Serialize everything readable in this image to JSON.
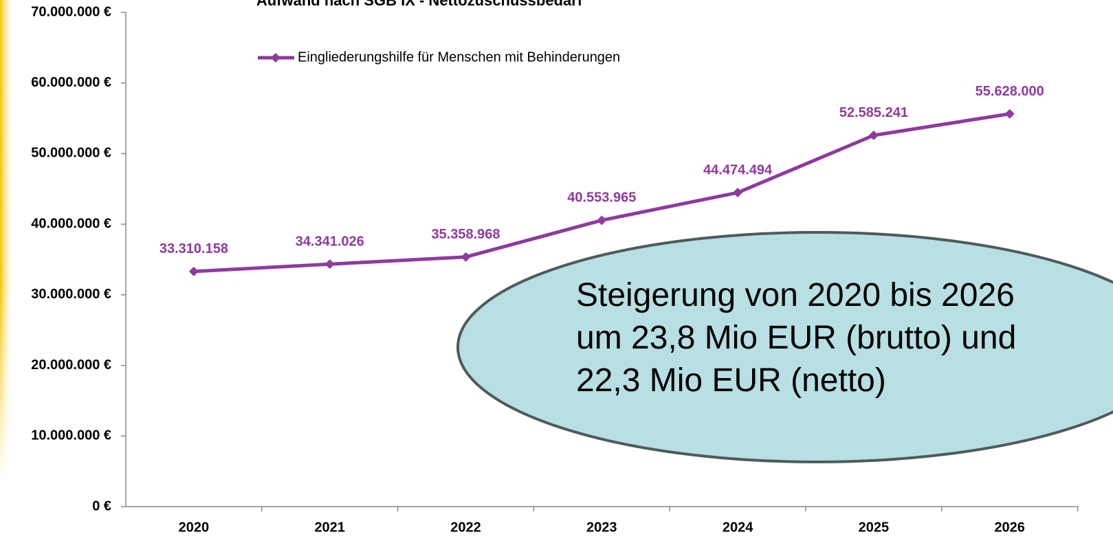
{
  "chart_data": {
    "type": "line",
    "title": "Aufwand nach SGB IX - Nettozuschussbedarf",
    "categories": [
      "2020",
      "2021",
      "2022",
      "2023",
      "2024",
      "2025",
      "2026"
    ],
    "series": [
      {
        "name": "Eingliederungshilfe für Menschen mit Behinderungen",
        "color": "#8e3a9e",
        "values": [
          33310158,
          34341026,
          35358968,
          40553965,
          44474494,
          52585241,
          55628000
        ],
        "value_labels": [
          "33.310.158",
          "34.341.026",
          "35.358.968",
          "40.553.965",
          "44.474.494",
          "52.585.241",
          "55.628.000"
        ]
      }
    ],
    "ylim": [
      0,
      70000000
    ],
    "yticks": [
      {
        "value": 0,
        "label": "0 €"
      },
      {
        "value": 10000000,
        "label": "10.000.000 €"
      },
      {
        "value": 20000000,
        "label": "20.000.000 €"
      },
      {
        "value": 30000000,
        "label": "30.000.000 €"
      },
      {
        "value": 40000000,
        "label": "40.000.000 €"
      },
      {
        "value": 50000000,
        "label": "50.000.000 €"
      },
      {
        "value": 60000000,
        "label": "60.000.000 €"
      },
      {
        "value": 70000000,
        "label": "70.000.000 €"
      }
    ],
    "legend": "top",
    "annotation": [
      "Steigerung von 2020 bis 2026",
      "um 23,8 Mio EUR (brutto) und",
      "22,3 Mio EUR (netto)"
    ]
  }
}
